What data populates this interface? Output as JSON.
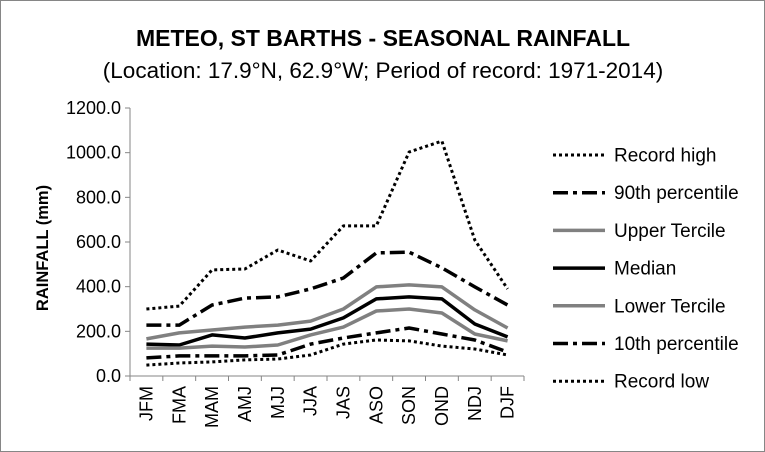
{
  "chart_data": {
    "type": "line",
    "title": "METEO, ST BARTHS - SEASONAL RAINFALL",
    "subtitle": "(Location: 17.9°N, 62.9°W; Period of record: 1971-2014)",
    "xlabel": "",
    "ylabel": "RAINFALL (mm)",
    "ylim": [
      0,
      1200
    ],
    "yticks": [
      "0.0",
      "200.0",
      "400.0",
      "600.0",
      "800.0",
      "1000.0",
      "1200.0"
    ],
    "grid": false,
    "legend": "right",
    "categories": [
      "JFM",
      "FMA",
      "MAM",
      "AMJ",
      "MJJ",
      "JJA",
      "JAS",
      "ASO",
      "SON",
      "OND",
      "NDJ",
      "DJF"
    ],
    "series": [
      {
        "name": "Record high",
        "color": "#000000",
        "line_style": "dotted",
        "values": [
          300,
          313,
          475,
          479,
          564,
          515,
          672,
          672,
          1003,
          1052,
          609,
          390
        ]
      },
      {
        "name": "90th percentile",
        "color": "#000000",
        "line_style": "dash-dot",
        "values": [
          228,
          228,
          318,
          349,
          354,
          390,
          439,
          551,
          555,
          484,
          399,
          318
        ]
      },
      {
        "name": "Upper Tercile",
        "color": "#808080",
        "line_style": "solid",
        "values": [
          166,
          193,
          206,
          219,
          228,
          246,
          300,
          399,
          408,
          399,
          296,
          215
        ]
      },
      {
        "name": "Median",
        "color": "#000000",
        "line_style": "solid",
        "values": [
          143,
          139,
          184,
          170,
          193,
          210,
          260,
          345,
          354,
          345,
          233,
          175
        ]
      },
      {
        "name": "Lower Tercile",
        "color": "#808080",
        "line_style": "solid",
        "values": [
          125,
          125,
          134,
          130,
          139,
          184,
          219,
          291,
          300,
          282,
          188,
          157
        ]
      },
      {
        "name": "10th percentile",
        "color": "#000000",
        "line_style": "dash-dot",
        "values": [
          81,
          90,
          90,
          90,
          94,
          143,
          170,
          193,
          215,
          188,
          161,
          107
        ]
      },
      {
        "name": "Record low",
        "color": "#000000",
        "line_style": "dotted",
        "values": [
          49,
          58,
          63,
          72,
          76,
          94,
          143,
          161,
          157,
          134,
          121,
          94
        ]
      }
    ]
  }
}
